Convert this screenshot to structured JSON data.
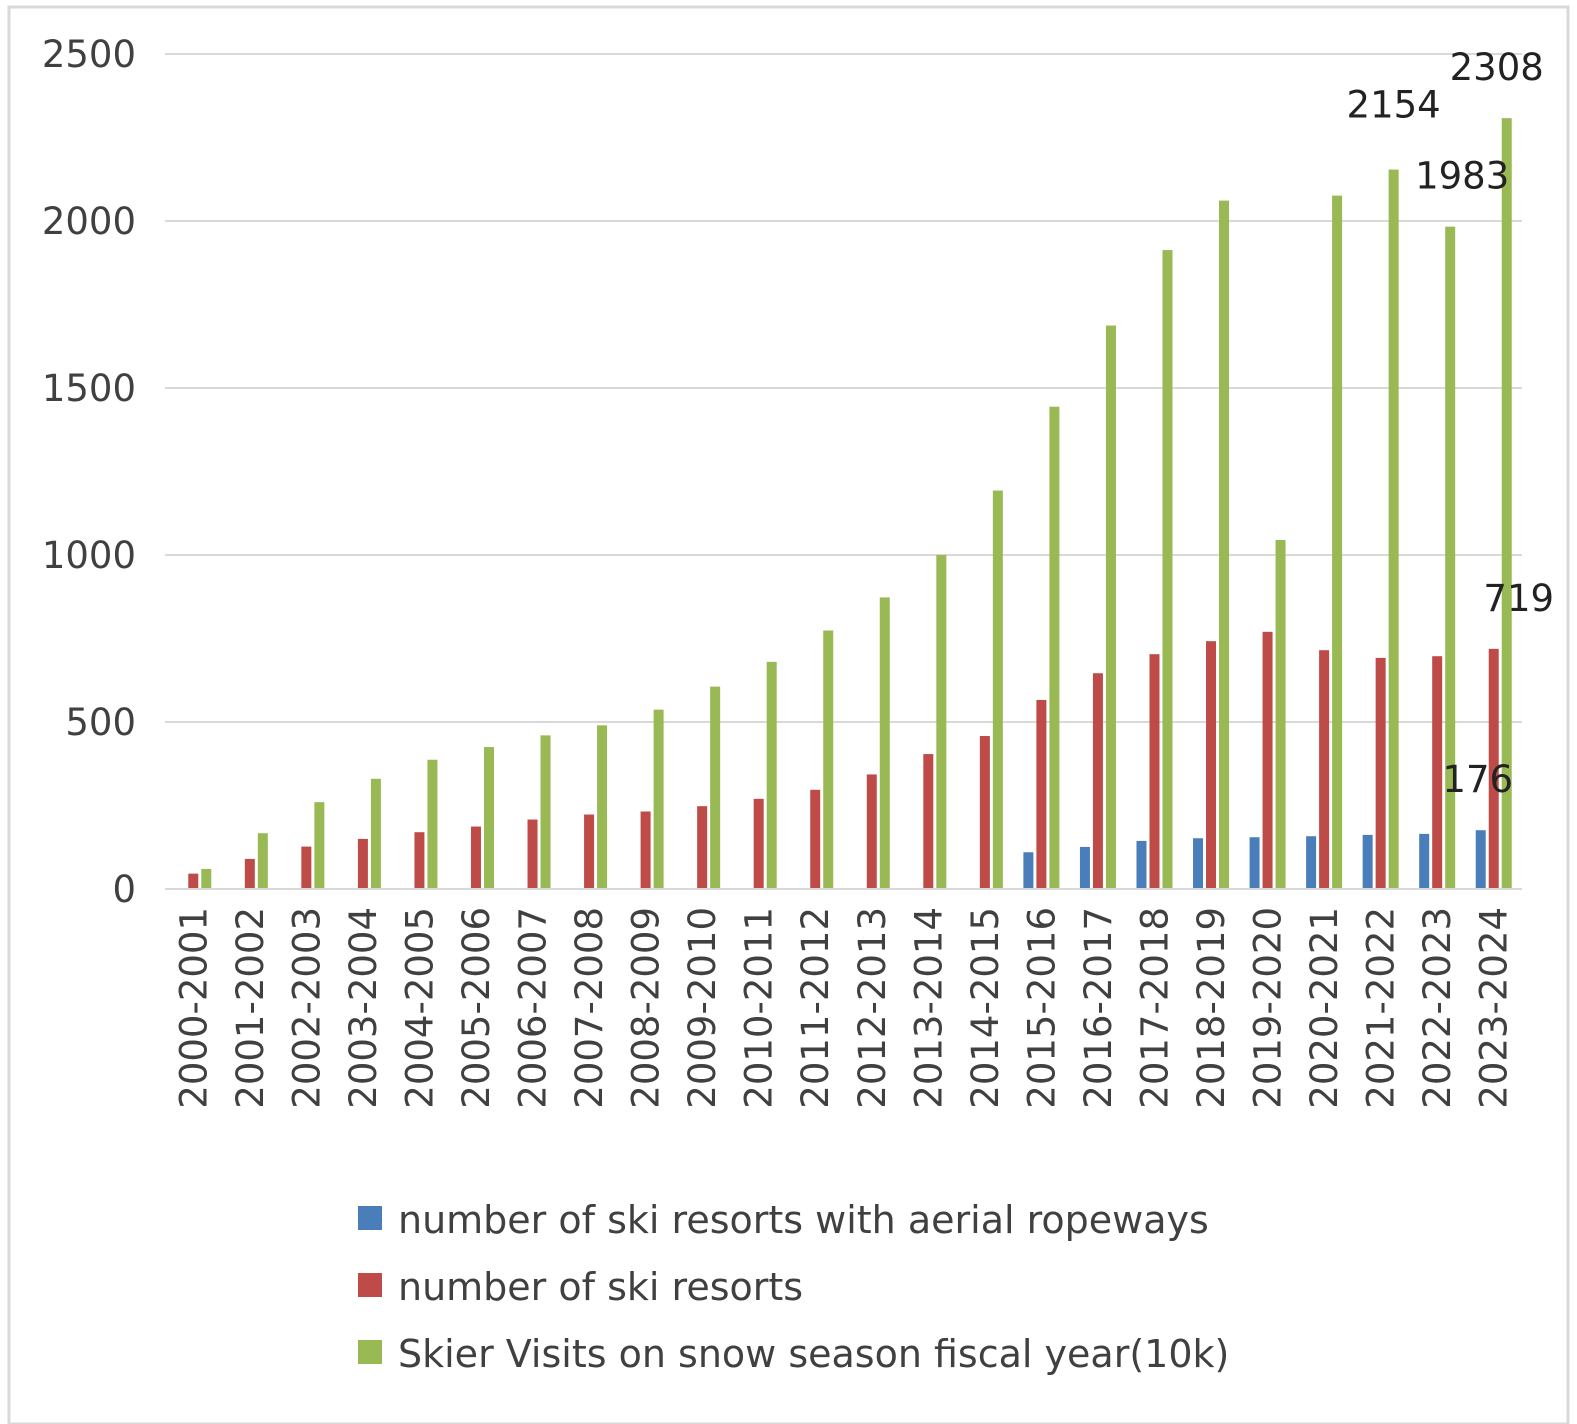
{
  "chart_data": {
    "type": "bar",
    "title": "",
    "xlabel": "",
    "ylabel": "",
    "ylim": [
      0,
      2500
    ],
    "yticks": [
      0,
      500,
      1000,
      1500,
      2000,
      2500
    ],
    "grid": true,
    "legend_position": "bottom",
    "categories": [
      "2000-2001",
      "2001-2002",
      "2002-2003",
      "2003-2004",
      "2004-2005",
      "2005-2006",
      "2006-2007",
      "2007-2008",
      "2008-2009",
      "2009-2010",
      "2010-2011",
      "2011-2012",
      "2012-2013",
      "2013-2014",
      "2014-2015",
      "2015-2016",
      "2016-2017",
      "2017-2018",
      "2018-2019",
      "2019-2020",
      "2020-2021",
      "2021-2022",
      "2022-2023",
      "2023-2024"
    ],
    "series": [
      {
        "name": "number of ski resorts with aerial ropeways",
        "color": "#4a7ebb",
        "values": [
          null,
          null,
          null,
          null,
          null,
          null,
          null,
          null,
          null,
          null,
          null,
          null,
          null,
          null,
          null,
          110,
          126,
          144,
          152,
          155,
          158,
          162,
          165,
          176
        ]
      },
      {
        "name": "number of ski resorts",
        "color": "#be4b48",
        "values": [
          46,
          90,
          127,
          150,
          170,
          187,
          208,
          223,
          232,
          248,
          270,
          297,
          343,
          404,
          458,
          566,
          646,
          703,
          742,
          770,
          715,
          692,
          697,
          719
        ]
      },
      {
        "name": "Skier Visits on snow season fiscal year(10k)",
        "color": "#98b954",
        "values": [
          60,
          167,
          260,
          330,
          387,
          425,
          460,
          490,
          537,
          606,
          680,
          774,
          873,
          1000,
          1193,
          1444,
          1687,
          1913,
          2061,
          1045,
          2076,
          2154,
          1983,
          2308
        ]
      }
    ],
    "data_labels": [
      {
        "series": 2,
        "index": 21,
        "text": "2154"
      },
      {
        "series": 2,
        "index": 22,
        "text": "1983"
      },
      {
        "series": 2,
        "index": 23,
        "text": "2308"
      },
      {
        "series": 1,
        "index": 23,
        "text": "719"
      },
      {
        "series": 0,
        "index": 23,
        "text": "176"
      }
    ]
  }
}
